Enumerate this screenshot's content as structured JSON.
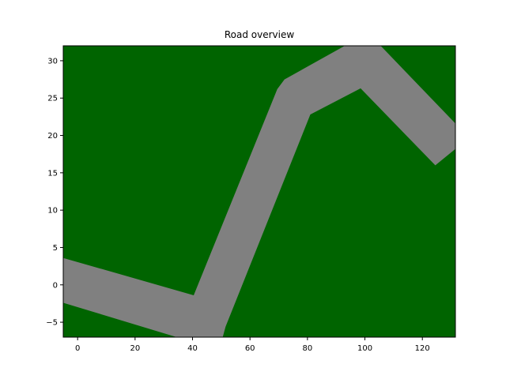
{
  "chart_data": {
    "type": "area",
    "title": "Road overview",
    "xlabel": "",
    "ylabel": "",
    "xlim": [
      -5,
      131.5
    ],
    "ylim": [
      -7,
      32
    ],
    "x_ticks": [
      0,
      20,
      40,
      60,
      80,
      100,
      120
    ],
    "y_ticks": [
      -5,
      0,
      5,
      10,
      15,
      20,
      25,
      30
    ],
    "grid": false,
    "background_color": "#006400",
    "road": {
      "color": "#808080",
      "centerline": [
        {
          "x": -5,
          "y": 0.6
        },
        {
          "x": 45,
          "y": -4.0
        },
        {
          "x": 75,
          "y": 25.0
        },
        {
          "x": 100,
          "y": 30.0
        },
        {
          "x": 131.5,
          "y": 19.3
        }
      ],
      "polygon": [
        {
          "x": -5,
          "y": 3.6
        },
        {
          "x": 40.4,
          "y": -1.4
        },
        {
          "x": 69.5,
          "y": 26.2
        },
        {
          "x": 72.0,
          "y": 27.5
        },
        {
          "x": 93.0,
          "y": 32.0
        },
        {
          "x": 105.5,
          "y": 32.0
        },
        {
          "x": 131.5,
          "y": 21.6
        },
        {
          "x": 131.5,
          "y": 18.2
        },
        {
          "x": 124.5,
          "y": 16.0
        },
        {
          "x": 98.5,
          "y": 26.3
        },
        {
          "x": 81.0,
          "y": 22.8
        },
        {
          "x": 51.5,
          "y": -5.6
        },
        {
          "x": 50.5,
          "y": -7.0
        },
        {
          "x": 34.5,
          "y": -7.0
        },
        {
          "x": -5,
          "y": -2.4
        }
      ]
    }
  }
}
